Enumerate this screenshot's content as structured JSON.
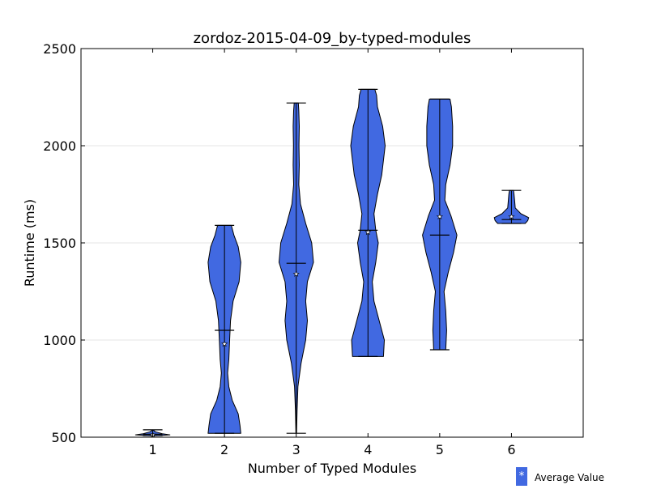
{
  "chart_data": {
    "type": "violin",
    "title": "zordoz-2015-04-09_by-typed-modules",
    "xlabel": "Number of Typed Modules",
    "ylabel": "Runtime (ms)",
    "categories": [
      "1",
      "2",
      "3",
      "4",
      "5",
      "6"
    ],
    "ylim": [
      500,
      2500
    ],
    "yticks": [
      500,
      1000,
      1500,
      2000,
      2500
    ],
    "grid": "horizontal",
    "legend": {
      "placement": "bottom-right",
      "label": "Average Value",
      "marker": "*"
    },
    "colors": {
      "violin_fill": "#4169e1",
      "stroke": "#000000",
      "mean_marker": "#ffffff"
    },
    "series": [
      {
        "category": "1",
        "min": 508,
        "max": 538,
        "median": 515,
        "mean": 512,
        "density": [
          [
            508,
            0.2
          ],
          [
            512,
            1.0
          ],
          [
            518,
            0.55
          ],
          [
            528,
            0.15
          ],
          [
            538,
            0.0
          ]
        ]
      },
      {
        "category": "2",
        "min": 520,
        "max": 1590,
        "median": 1050,
        "mean": 980,
        "density": [
          [
            520,
            0.95
          ],
          [
            560,
            0.9
          ],
          [
            620,
            0.8
          ],
          [
            690,
            0.45
          ],
          [
            760,
            0.25
          ],
          [
            830,
            0.18
          ],
          [
            900,
            0.25
          ],
          [
            1000,
            0.3
          ],
          [
            1100,
            0.35
          ],
          [
            1200,
            0.5
          ],
          [
            1300,
            0.85
          ],
          [
            1400,
            0.95
          ],
          [
            1480,
            0.8
          ],
          [
            1540,
            0.55
          ],
          [
            1590,
            0.4
          ]
        ]
      },
      {
        "category": "3",
        "min": 520,
        "max": 2220,
        "median": 1395,
        "mean": 1340,
        "density": [
          [
            520,
            0.02
          ],
          [
            640,
            0.05
          ],
          [
            760,
            0.1
          ],
          [
            880,
            0.28
          ],
          [
            1000,
            0.55
          ],
          [
            1100,
            0.65
          ],
          [
            1200,
            0.55
          ],
          [
            1300,
            0.65
          ],
          [
            1400,
            1.0
          ],
          [
            1500,
            0.9
          ],
          [
            1600,
            0.55
          ],
          [
            1700,
            0.25
          ],
          [
            1800,
            0.15
          ],
          [
            1900,
            0.18
          ],
          [
            2000,
            0.16
          ],
          [
            2100,
            0.18
          ],
          [
            2180,
            0.15
          ],
          [
            2220,
            0.12
          ]
        ]
      },
      {
        "category": "4",
        "min": 915,
        "max": 2290,
        "median": 1565,
        "mean": 1555,
        "density": [
          [
            915,
            0.9
          ],
          [
            1000,
            0.95
          ],
          [
            1100,
            0.65
          ],
          [
            1200,
            0.35
          ],
          [
            1300,
            0.25
          ],
          [
            1400,
            0.45
          ],
          [
            1500,
            0.6
          ],
          [
            1565,
            0.45
          ],
          [
            1650,
            0.35
          ],
          [
            1750,
            0.55
          ],
          [
            1850,
            0.8
          ],
          [
            2000,
            1.0
          ],
          [
            2100,
            0.85
          ],
          [
            2200,
            0.55
          ],
          [
            2260,
            0.5
          ],
          [
            2290,
            0.4
          ]
        ]
      },
      {
        "category": "5",
        "min": 950,
        "max": 2240,
        "median": 1540,
        "mean": 1635,
        "density": [
          [
            950,
            0.35
          ],
          [
            1050,
            0.4
          ],
          [
            1150,
            0.35
          ],
          [
            1250,
            0.25
          ],
          [
            1350,
            0.5
          ],
          [
            1450,
            0.8
          ],
          [
            1540,
            1.0
          ],
          [
            1640,
            0.65
          ],
          [
            1720,
            0.3
          ],
          [
            1800,
            0.35
          ],
          [
            1900,
            0.6
          ],
          [
            2000,
            0.75
          ],
          [
            2100,
            0.75
          ],
          [
            2200,
            0.68
          ],
          [
            2240,
            0.6
          ]
        ]
      },
      {
        "category": "6",
        "min": 1600,
        "max": 1770,
        "median": 1620,
        "mean": 1635,
        "density": [
          [
            1600,
            0.8
          ],
          [
            1615,
            0.95
          ],
          [
            1630,
            1.0
          ],
          [
            1650,
            0.55
          ],
          [
            1680,
            0.22
          ],
          [
            1720,
            0.18
          ],
          [
            1750,
            0.15
          ],
          [
            1770,
            0.12
          ]
        ]
      }
    ]
  }
}
